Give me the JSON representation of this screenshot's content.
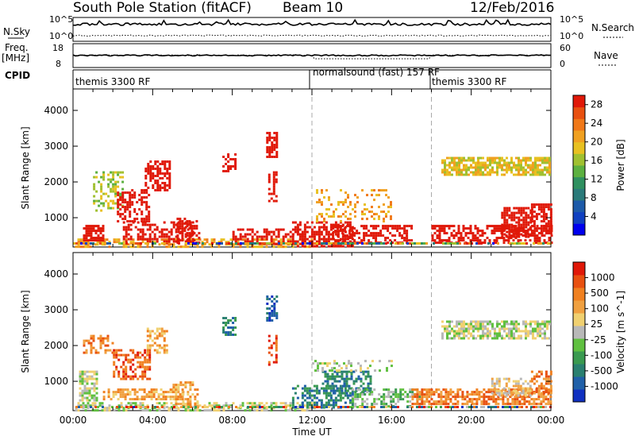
{
  "header": {
    "station": "South Pole Station (fitACF)",
    "beam": "Beam 10",
    "date": "12/Feb/2016"
  },
  "strip_labels": {
    "nsky": "N.Sky",
    "nsky_hi": "10^5",
    "nsky_lo": "10^0",
    "nsearch": "N.Search",
    "freq": "Freq.",
    "freq_unit": "[MHz]",
    "freq_hi": "18",
    "freq_lo": "8",
    "nave": "Nave",
    "nave_hi": "60",
    "nave_lo": "0",
    "cpid": "CPID"
  },
  "cpid_segments": [
    {
      "label": "themis 3300 RF",
      "start_hour": 0
    },
    {
      "label": "normalsound (fast) 157 RF",
      "start_hour": 12
    },
    {
      "label": "themis 3300 RF",
      "start_hour": 18
    }
  ],
  "chart_data": [
    {
      "type": "heatmap",
      "panel": "power",
      "xlabel": "",
      "ylabel": "Slant Range [km]",
      "x_ticks": [
        "00:00",
        "04:00",
        "08:00",
        "12:00",
        "16:00",
        "20:00",
        "00:00"
      ],
      "y_ticks": [
        1000,
        2000,
        3000,
        4000
      ],
      "ylim": [
        180,
        4600
      ],
      "xlim_hours": [
        0,
        24
      ],
      "colorbar": {
        "label": "Power [dB]",
        "ticks": [
          4,
          8,
          12,
          16,
          20,
          24,
          28
        ],
        "range": [
          0,
          30
        ],
        "colors": [
          "#0000ee",
          "#1040c0",
          "#1d5aa8",
          "#2a7a7a",
          "#2f9060",
          "#5cb040",
          "#a0c030",
          "#e8c020",
          "#f0a020",
          "#f07818",
          "#e85010",
          "#e01808"
        ]
      },
      "regions": [
        {
          "t0": 0.1,
          "t1": 12.0,
          "r0": 200,
          "r1": 420,
          "val": 8,
          "density": 0.55
        },
        {
          "t0": 0.5,
          "t1": 1.5,
          "r0": 350,
          "r1": 800,
          "val": 20,
          "density": 0.8
        },
        {
          "t0": 1.0,
          "t1": 2.5,
          "r0": 1200,
          "r1": 2300,
          "val": 6,
          "density": 0.45
        },
        {
          "t0": 2.2,
          "t1": 3.8,
          "r0": 900,
          "r1": 1800,
          "val": 18,
          "density": 0.55
        },
        {
          "t0": 3.6,
          "t1": 4.8,
          "r0": 1800,
          "r1": 2600,
          "val": 12,
          "density": 0.6
        },
        {
          "t0": 2.5,
          "t1": 6.0,
          "r0": 350,
          "r1": 900,
          "val": 12,
          "density": 0.5
        },
        {
          "t0": 5.2,
          "t1": 6.3,
          "r0": 300,
          "r1": 1000,
          "val": 14,
          "density": 0.5
        },
        {
          "t0": 7.5,
          "t1": 8.1,
          "r0": 2300,
          "r1": 2800,
          "val": 14,
          "density": 0.6
        },
        {
          "t0": 9.7,
          "t1": 10.2,
          "r0": 2700,
          "r1": 3400,
          "val": 20,
          "density": 0.7
        },
        {
          "t0": 9.8,
          "t1": 10.2,
          "r0": 1500,
          "r1": 2300,
          "val": 14,
          "density": 0.6
        },
        {
          "t0": 8.0,
          "t1": 11.5,
          "r0": 300,
          "r1": 700,
          "val": 12,
          "density": 0.5
        },
        {
          "t0": 11.0,
          "t1": 14.0,
          "r0": 200,
          "r1": 900,
          "val": 18,
          "density": 0.6
        },
        {
          "t0": 13.0,
          "t1": 17.0,
          "r0": 300,
          "r1": 800,
          "val": 16,
          "density": 0.55
        },
        {
          "t0": 12.2,
          "t1": 16.0,
          "r0": 900,
          "r1": 1800,
          "val": 8,
          "density": 0.25
        },
        {
          "t0": 18.0,
          "t1": 24.0,
          "r0": 300,
          "r1": 800,
          "val": 12,
          "density": 0.55
        },
        {
          "t0": 21.5,
          "t1": 23.0,
          "r0": 500,
          "r1": 1300,
          "val": 26,
          "density": 0.7
        },
        {
          "t0": 23.0,
          "t1": 24.0,
          "r0": 600,
          "r1": 1400,
          "val": 22,
          "density": 0.6
        },
        {
          "t0": 18.5,
          "t1": 24.0,
          "r0": 2200,
          "r1": 2700,
          "val": 7,
          "density": 0.75
        }
      ]
    },
    {
      "type": "heatmap",
      "panel": "velocity",
      "xlabel": "Time UT",
      "ylabel": "Slant Range [km]",
      "x_ticks": [
        "00:00",
        "04:00",
        "08:00",
        "12:00",
        "16:00",
        "20:00",
        "00:00"
      ],
      "y_ticks": [
        1000,
        2000,
        3000,
        4000
      ],
      "ylim": [
        180,
        4600
      ],
      "xlim_hours": [
        0,
        24
      ],
      "colorbar": {
        "label": "Velocity [m s^-1]",
        "ticks": [
          "1000",
          "500",
          "100",
          "25",
          "-25",
          "-100",
          "-500",
          "-1000"
        ],
        "colors": [
          "#1030c0",
          "#2060a8",
          "#2a8070",
          "#3a9a50",
          "#60c040",
          "#b8b8b8",
          "#f0d070",
          "#f0a040",
          "#f08020",
          "#e85010",
          "#e01808"
        ]
      },
      "regions": [
        {
          "t0": 0.1,
          "t1": 12.0,
          "r0": 200,
          "r1": 420,
          "val": 5,
          "density": 0.55
        },
        {
          "t0": 0.3,
          "t1": 1.2,
          "r0": 500,
          "r1": 1300,
          "val": 5,
          "density": 0.7
        },
        {
          "t0": 0.5,
          "t1": 2.0,
          "r0": 1800,
          "r1": 2300,
          "val": 8,
          "density": 0.5
        },
        {
          "t0": 2.0,
          "t1": 3.8,
          "r0": 1100,
          "r1": 1900,
          "val": 9,
          "density": 0.55
        },
        {
          "t0": 3.7,
          "t1": 4.7,
          "r0": 1800,
          "r1": 2500,
          "val": 7,
          "density": 0.55
        },
        {
          "t0": 1.5,
          "t1": 5.5,
          "r0": 500,
          "r1": 800,
          "val": 7,
          "density": 0.65
        },
        {
          "t0": 5.0,
          "t1": 6.2,
          "r0": 300,
          "r1": 1000,
          "val": 7,
          "density": 0.5
        },
        {
          "t0": 7.5,
          "t1": 8.1,
          "r0": 2300,
          "r1": 2800,
          "val": 2,
          "density": 0.55
        },
        {
          "t0": 9.7,
          "t1": 10.2,
          "r0": 2700,
          "r1": 3400,
          "val": 1,
          "density": 0.6
        },
        {
          "t0": 9.8,
          "t1": 10.2,
          "r0": 1500,
          "r1": 2300,
          "val": 9,
          "density": 0.6
        },
        {
          "t0": 11.0,
          "t1": 14.0,
          "r0": 300,
          "r1": 900,
          "val": 2,
          "density": 0.55
        },
        {
          "t0": 12.5,
          "t1": 15.0,
          "r0": 700,
          "r1": 1300,
          "val": 2,
          "density": 0.5
        },
        {
          "t0": 14.0,
          "t1": 17.5,
          "r0": 300,
          "r1": 800,
          "val": 4,
          "density": 0.45
        },
        {
          "t0": 12.0,
          "t1": 16.0,
          "r0": 1300,
          "r1": 1600,
          "val": 5,
          "density": 0.25
        },
        {
          "t0": 17.0,
          "t1": 24.0,
          "r0": 400,
          "r1": 800,
          "val": 8,
          "density": 0.65
        },
        {
          "t0": 21.0,
          "t1": 23.0,
          "r0": 600,
          "r1": 1100,
          "val": 6,
          "density": 0.6
        },
        {
          "t0": 23.0,
          "t1": 24.0,
          "r0": 700,
          "r1": 1300,
          "val": 8,
          "density": 0.6
        },
        {
          "t0": 18.5,
          "t1": 24.0,
          "r0": 2200,
          "r1": 2700,
          "val": 5,
          "density": 0.7
        }
      ]
    }
  ]
}
